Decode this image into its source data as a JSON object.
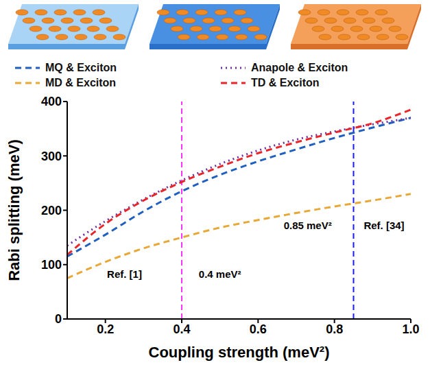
{
  "chart_data": {
    "type": "line",
    "x_label": "Coupling strength (meV²)",
    "y_label": "Rabi splitting (meV)",
    "x": [
      0.1,
      0.2,
      0.3,
      0.4,
      0.5,
      0.6,
      0.7,
      0.8,
      0.9,
      1.0
    ],
    "series": [
      {
        "name": "MQ & Exciton",
        "color": "#1f5fbf",
        "line_style": "dashed",
        "values": [
          115,
          155,
          198,
          235,
          265,
          290,
          312,
          333,
          352,
          370
        ]
      },
      {
        "name": "Anapole & Exciton",
        "color": "#7030a0",
        "line_style": "dotted",
        "values": [
          135,
          180,
          220,
          255,
          285,
          310,
          330,
          345,
          358,
          370
        ]
      },
      {
        "name": "MD & Exciton",
        "color": "#e8a838",
        "line_style": "dashed",
        "values": [
          75,
          105,
          130,
          150,
          168,
          182,
          195,
          207,
          218,
          230
        ]
      },
      {
        "name": "TD & Exciton",
        "color": "#e8262a",
        "line_style": "dashed",
        "values": [
          118,
          175,
          218,
          252,
          280,
          305,
          325,
          343,
          360,
          385
        ]
      }
    ],
    "xlim": [
      0.1,
      1.0
    ],
    "xticks": [
      0.2,
      0.4,
      0.6,
      0.8,
      {
        "value": 1,
        "label": "1.0"
      }
    ],
    "ylim": [
      0,
      400
    ],
    "yticks": [
      0,
      100,
      200,
      300,
      400
    ],
    "grid": false,
    "legend": "top",
    "reference_lines": [
      {
        "x": 0.4,
        "color": "#ff33ff"
      },
      {
        "x": 0.85,
        "color": "#1a1aff"
      }
    ],
    "annotations": [
      {
        "text": "Ref. [1]",
        "x": 0.25,
        "y": 82
      },
      {
        "text": "0.4 meV²",
        "x": 0.5,
        "y": 82
      },
      {
        "text": "0.85 meV²",
        "x": 0.73,
        "y": 172
      },
      {
        "text": "Ref. [34]",
        "x": 0.93,
        "y": 172
      }
    ]
  }
}
